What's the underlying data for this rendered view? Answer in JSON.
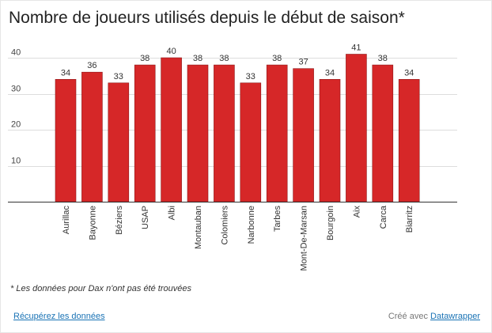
{
  "title": "Nombre de joueurs utilisés depuis le début de saison*",
  "footnote": "* Les données pour Dax n'ont pas été trouvées",
  "footer": {
    "get_data": "Récupérez les données",
    "created_with": "Créé avec",
    "tool_link": "Datawrapper"
  },
  "colors": {
    "bar": "#d62728",
    "link": "#1a73b5"
  },
  "chart_data": {
    "type": "bar",
    "title": "Nombre de joueurs utilisés depuis le début de saison*",
    "xlabel": "",
    "ylabel": "",
    "categories": [
      "Aurillac",
      "Bayonne",
      "Béziers",
      "USAP",
      "Albi",
      "Montauban",
      "Colomiers",
      "Narbonne",
      "Tarbes",
      "Mont-De-Marsan",
      "Bourgoin",
      "Aix",
      "Carca",
      "Biarritz"
    ],
    "values": [
      34,
      36,
      33,
      38,
      40,
      38,
      38,
      33,
      38,
      37,
      34,
      41,
      38,
      34
    ],
    "ylim": [
      0,
      40
    ],
    "yticks": [
      "10",
      "20",
      "30",
      "40"
    ],
    "data_labels": [
      "34",
      "36",
      "33",
      "38",
      "40",
      "38",
      "38",
      "33",
      "38",
      "37",
      "34",
      "41",
      "38",
      "34"
    ],
    "grid": true
  }
}
